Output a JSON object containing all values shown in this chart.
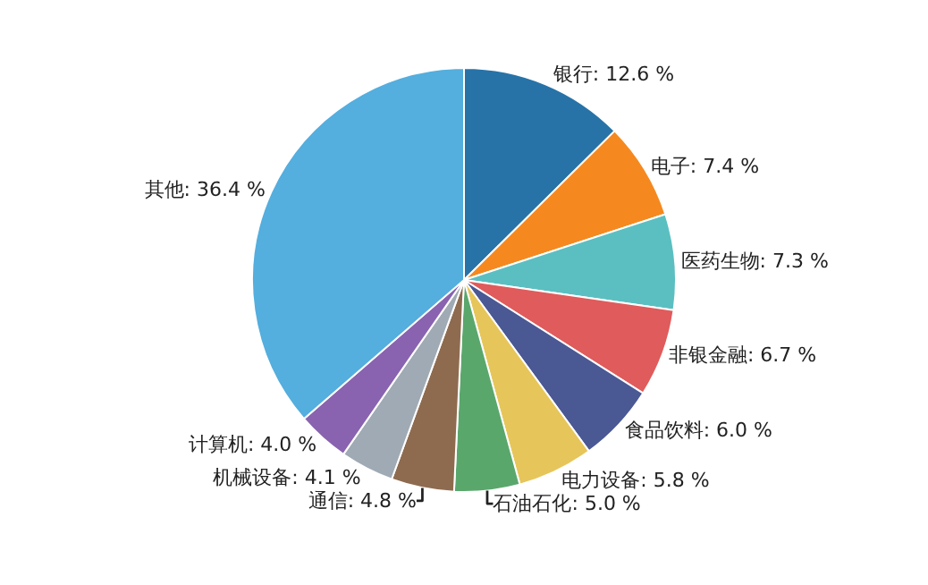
{
  "chart_data": {
    "type": "pie",
    "categories": [
      "银行",
      "电子",
      "医药生物",
      "非银金融",
      "食品饮料",
      "电力设备",
      "石油石化",
      "通信",
      "机械设备",
      "计算机",
      "其他"
    ],
    "values": [
      12.6,
      7.4,
      7.3,
      6.7,
      6.0,
      5.8,
      5.0,
      4.8,
      4.1,
      4.0,
      36.4
    ],
    "value_labels": [
      "12.6 %",
      "7.4 %",
      "7.3 %",
      "6.7 %",
      "6.0 %",
      "5.8 %",
      "5.0 %",
      "4.8 %",
      "4.1 %",
      "4.0 %",
      "36.4 %"
    ],
    "colors": [
      "#2773a8",
      "#f5891f",
      "#5bbfc1",
      "#e05b5b",
      "#4a5894",
      "#e6c65a",
      "#5aa76c",
      "#8e6b4f",
      "#a0aab4",
      "#8963b0",
      "#54aede"
    ],
    "legend": false
  }
}
